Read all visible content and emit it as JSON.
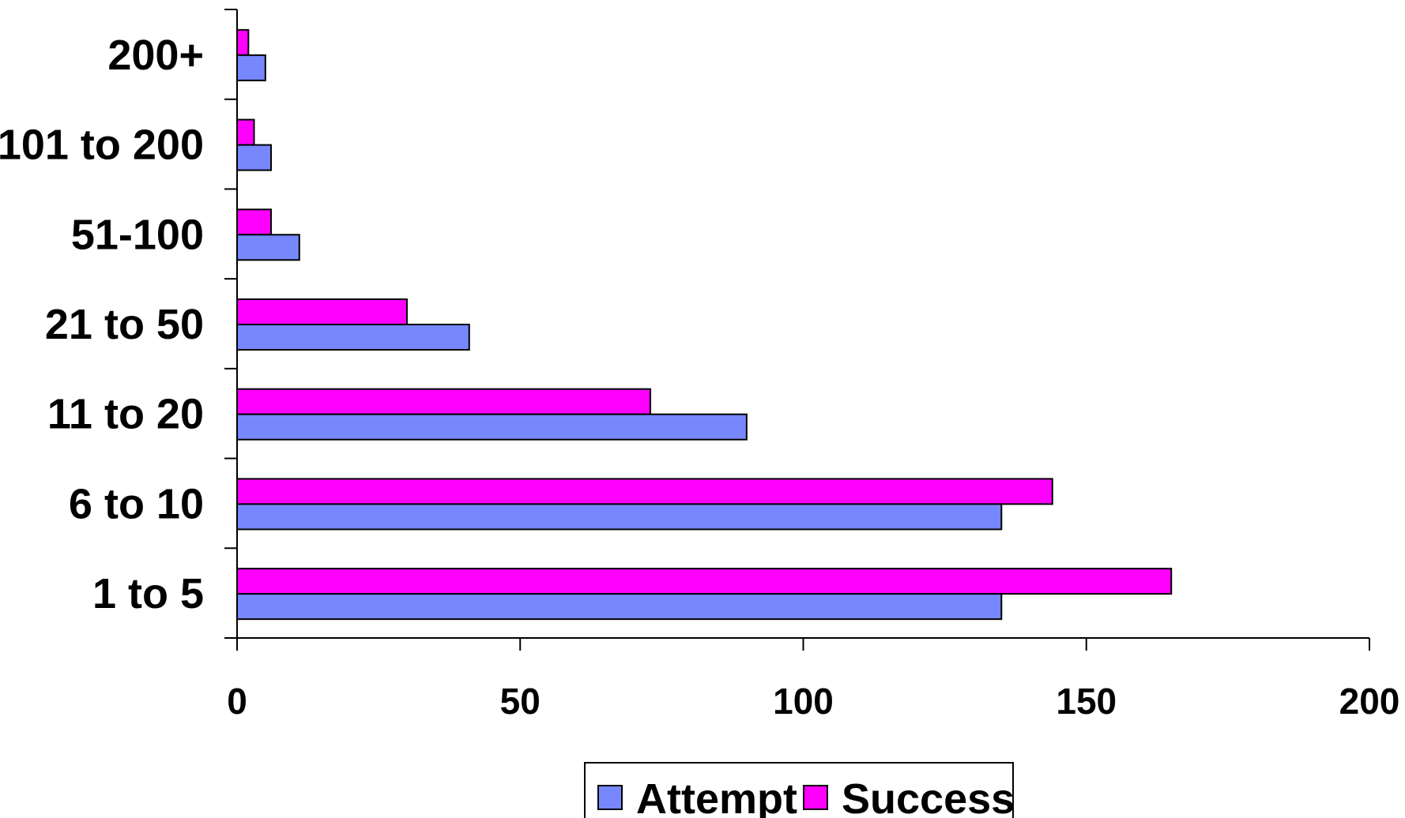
{
  "chart_data": {
    "type": "bar",
    "orientation": "horizontal",
    "categories": [
      "1 to 5",
      "6 to 10",
      "11 to 20",
      "21 to 50",
      "51-100",
      "101 to 200",
      "200+"
    ],
    "series": [
      {
        "name": "Attempt",
        "color": "#7788FF",
        "values": [
          135,
          135,
          90,
          41,
          11,
          6,
          5
        ]
      },
      {
        "name": "Success",
        "color": "#FF00FF",
        "values": [
          165,
          144,
          73,
          30,
          6,
          3,
          2
        ]
      }
    ],
    "xlim": [
      0,
      200
    ],
    "xticks": [
      0,
      50,
      100,
      150,
      200
    ],
    "grid": false,
    "legend": {
      "position": "bottom",
      "items": [
        "Attempt",
        "Success"
      ]
    }
  }
}
